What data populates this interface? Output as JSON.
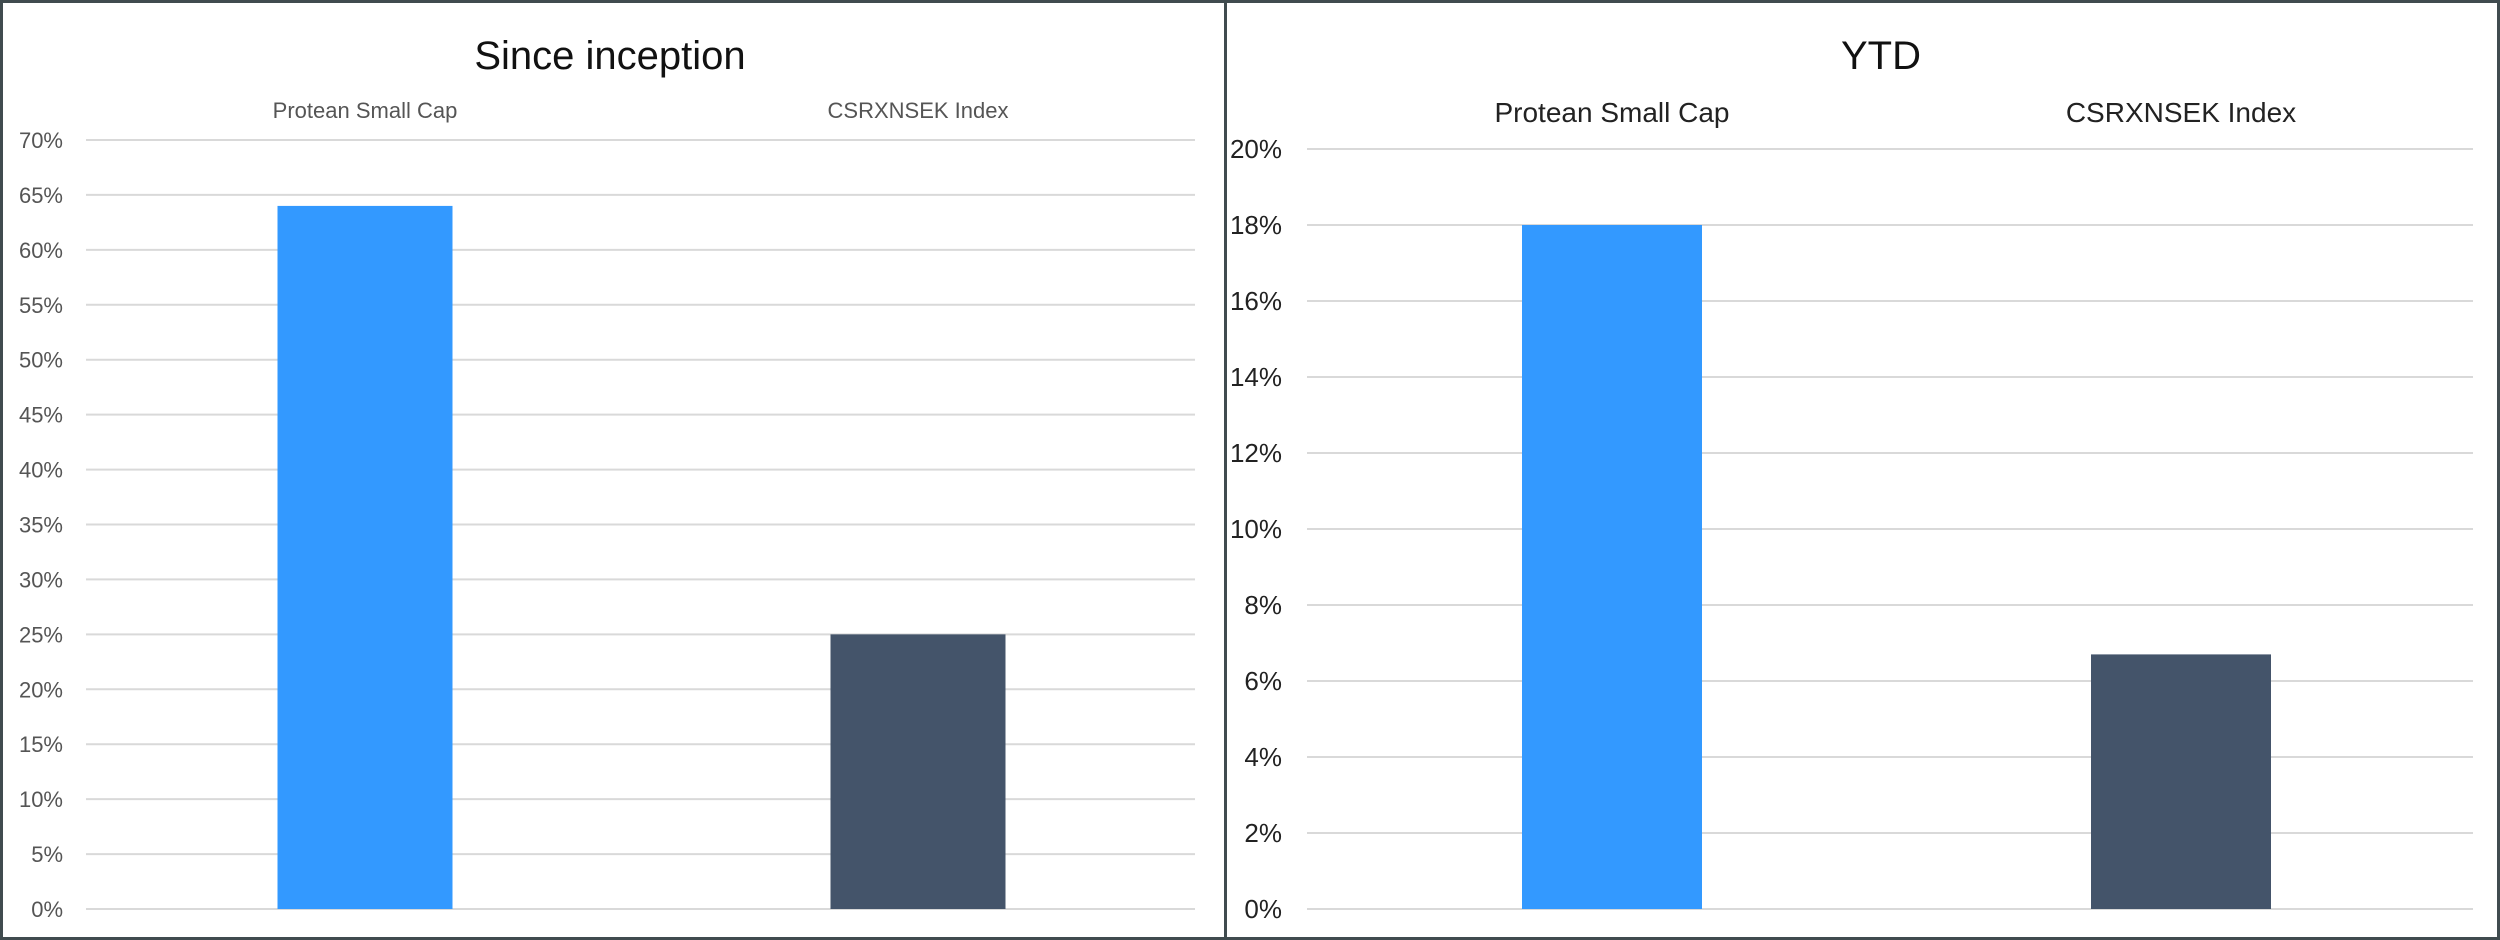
{
  "chart_data": [
    {
      "type": "bar",
      "title": "Since inception",
      "categories": [
        "Protean Small Cap",
        "CSRXNSEK Index"
      ],
      "values": [
        64,
        25
      ],
      "value_format": "percent",
      "ylim": [
        0,
        70
      ],
      "ytick_step": 5,
      "yticks": [
        "0%",
        "5%",
        "10%",
        "15%",
        "20%",
        "25%",
        "30%",
        "35%",
        "40%",
        "45%",
        "50%",
        "55%",
        "60%",
        "65%",
        "70%"
      ],
      "colors": [
        "#3399ff",
        "#44546a"
      ],
      "category_labels_position": "top",
      "grid": true,
      "legend": "none",
      "xlabel": "",
      "ylabel": ""
    },
    {
      "type": "bar",
      "title": "YTD",
      "categories": [
        "Protean Small Cap",
        "CSRXNSEK Index"
      ],
      "values": [
        18,
        6.7
      ],
      "value_format": "percent",
      "ylim": [
        0,
        20
      ],
      "ytick_step": 2,
      "yticks": [
        "0%",
        "2%",
        "4%",
        "6%",
        "8%",
        "10%",
        "12%",
        "14%",
        "16%",
        "18%",
        "20%"
      ],
      "colors": [
        "#3399ff",
        "#44546a"
      ],
      "category_labels_position": "top",
      "grid": true,
      "legend": "none",
      "xlabel": "",
      "ylabel": ""
    }
  ]
}
